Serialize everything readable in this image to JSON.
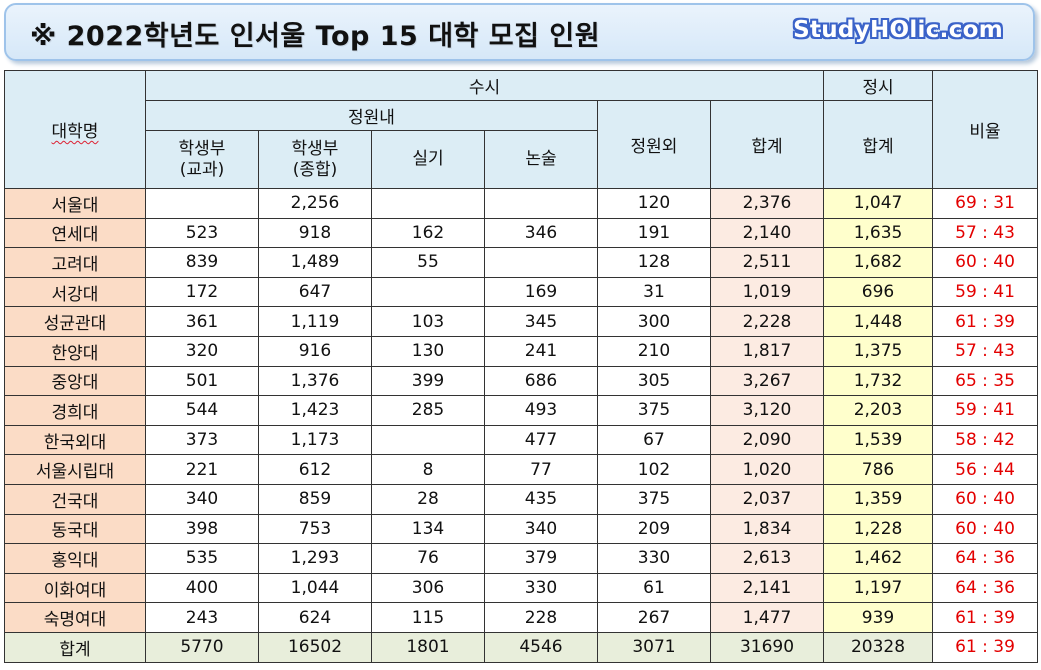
{
  "banner": {
    "title": "※ 2022학년도 인서울 Top 15 대학 모집 인원",
    "brand": "StudyHOlic.com"
  },
  "headers": {
    "university": "대학명",
    "susi": "수시",
    "jeongsi": "정시",
    "ratio": "비율",
    "jeongwonnae": "정원내",
    "jeongwonoe": "정원외",
    "susi_total": "합계",
    "jeongsi_total": "합계",
    "gyogwa": "학생부\n(교과)",
    "jonghap": "학생부\n(종합)",
    "silgi": "실기",
    "nonsul": "논술"
  },
  "rows": [
    {
      "name": "서울대",
      "gyogwa": "",
      "jonghap": "2,256",
      "silgi": "",
      "nonsul": "",
      "oe": "120",
      "susi_total": "2,376",
      "jeongsi": "1,047",
      "ratio": "69 : 31"
    },
    {
      "name": "연세대",
      "gyogwa": "523",
      "jonghap": "918",
      "silgi": "162",
      "nonsul": "346",
      "oe": "191",
      "susi_total": "2,140",
      "jeongsi": "1,635",
      "ratio": "57 : 43"
    },
    {
      "name": "고려대",
      "gyogwa": "839",
      "jonghap": "1,489",
      "silgi": "55",
      "nonsul": "",
      "oe": "128",
      "susi_total": "2,511",
      "jeongsi": "1,682",
      "ratio": "60 : 40"
    },
    {
      "name": "서강대",
      "gyogwa": "172",
      "jonghap": "647",
      "silgi": "",
      "nonsul": "169",
      "oe": "31",
      "susi_total": "1,019",
      "jeongsi": "696",
      "ratio": "59 : 41"
    },
    {
      "name": "성균관대",
      "gyogwa": "361",
      "jonghap": "1,119",
      "silgi": "103",
      "nonsul": "345",
      "oe": "300",
      "susi_total": "2,228",
      "jeongsi": "1,448",
      "ratio": "61 : 39"
    },
    {
      "name": "한양대",
      "gyogwa": "320",
      "jonghap": "916",
      "silgi": "130",
      "nonsul": "241",
      "oe": "210",
      "susi_total": "1,817",
      "jeongsi": "1,375",
      "ratio": "57 : 43"
    },
    {
      "name": "중앙대",
      "gyogwa": "501",
      "jonghap": "1,376",
      "silgi": "399",
      "nonsul": "686",
      "oe": "305",
      "susi_total": "3,267",
      "jeongsi": "1,732",
      "ratio": "65 : 35"
    },
    {
      "name": "경희대",
      "gyogwa": "544",
      "jonghap": "1,423",
      "silgi": "285",
      "nonsul": "493",
      "oe": "375",
      "susi_total": "3,120",
      "jeongsi": "2,203",
      "ratio": "59 : 41"
    },
    {
      "name": "한국외대",
      "gyogwa": "373",
      "jonghap": "1,173",
      "silgi": "",
      "nonsul": "477",
      "oe": "67",
      "susi_total": "2,090",
      "jeongsi": "1,539",
      "ratio": "58 : 42"
    },
    {
      "name": "서울시립대",
      "gyogwa": "221",
      "jonghap": "612",
      "silgi": "8",
      "nonsul": "77",
      "oe": "102",
      "susi_total": "1,020",
      "jeongsi": "786",
      "ratio": "56 : 44"
    },
    {
      "name": "건국대",
      "gyogwa": "340",
      "jonghap": "859",
      "silgi": "28",
      "nonsul": "435",
      "oe": "375",
      "susi_total": "2,037",
      "jeongsi": "1,359",
      "ratio": "60 : 40"
    },
    {
      "name": "동국대",
      "gyogwa": "398",
      "jonghap": "753",
      "silgi": "134",
      "nonsul": "340",
      "oe": "209",
      "susi_total": "1,834",
      "jeongsi": "1,228",
      "ratio": "60 : 40"
    },
    {
      "name": "홍익대",
      "gyogwa": "535",
      "jonghap": "1,293",
      "silgi": "76",
      "nonsul": "379",
      "oe": "330",
      "susi_total": "2,613",
      "jeongsi": "1,462",
      "ratio": "64 : 36"
    },
    {
      "name": "이화여대",
      "gyogwa": "400",
      "jonghap": "1,044",
      "silgi": "306",
      "nonsul": "330",
      "oe": "61",
      "susi_total": "2,141",
      "jeongsi": "1,197",
      "ratio": "64 : 36"
    },
    {
      "name": "숙명여대",
      "gyogwa": "243",
      "jonghap": "624",
      "silgi": "115",
      "nonsul": "228",
      "oe": "267",
      "susi_total": "1,477",
      "jeongsi": "939",
      "ratio": "61 : 39"
    }
  ],
  "total": {
    "name": "합계",
    "gyogwa": "5770",
    "jonghap": "16502",
    "silgi": "1801",
    "nonsul": "4546",
    "oe": "3071",
    "susi_total": "31690",
    "jeongsi": "20328",
    "ratio": "61 : 39"
  }
}
